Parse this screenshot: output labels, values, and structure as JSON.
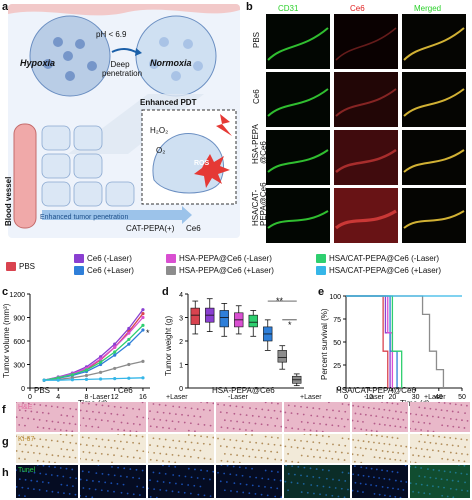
{
  "panels": {
    "a": "a",
    "b": "b",
    "c": "c",
    "d": "d",
    "e": "e",
    "f": "f",
    "g": "g",
    "h": "h"
  },
  "schematic": {
    "hypoxia": "Hypoxia",
    "normoxia": "Normoxia",
    "ph": "pH < 6.9",
    "deep_penetration": "Deep penetration",
    "enhanced_pdt": "Enhanced PDT",
    "blood_vessel": "Blood vessel",
    "enhanced_tumor_penetration": "Enhanced tumor penetration",
    "h2o2": "H₂O₂",
    "o2": "O₂",
    "ros": "ROS",
    "legend_cat": "CAT-PEPA(+)",
    "legend_ce6": "Ce6"
  },
  "panel_b": {
    "columns": [
      "CD31",
      "Ce6",
      "Merged"
    ],
    "column_colors": [
      "#2bd12b",
      "#e02020",
      "#2bd12b"
    ],
    "rows": [
      "PBS",
      "Ce6",
      "HSA-PEPA\n@Ce6",
      "HSA/CAT-\nPEPA@Ce6"
    ]
  },
  "legend": {
    "items": [
      {
        "label": "PBS",
        "color": "#d9434f"
      },
      {
        "label": "Ce6 (-Laser)",
        "color": "#8a3fd1"
      },
      {
        "label": "Ce6 (+Laser)",
        "color": "#2f7fd9"
      },
      {
        "label": "HSA-PEPA@Ce6 (-Laser)",
        "color": "#d94fd1"
      },
      {
        "label": "HSA-PEPA@Ce6 (+Laser)",
        "color": "#8c8c8c"
      },
      {
        "label": "HSA/CAT-PEPA@Ce6 (-Laser)",
        "color": "#2ecf6f"
      },
      {
        "label": "HSA/CAT-PEPA@Ce6 (+Laser)",
        "color": "#35b6e8"
      }
    ]
  },
  "chart_data": [
    {
      "type": "line",
      "panel": "c",
      "xlabel": "Time (d)",
      "ylabel": "Tumor volume (mm³)",
      "xlim": [
        0,
        17
      ],
      "ylim": [
        0,
        1200
      ],
      "xticks": [
        0,
        4,
        8,
        12,
        16
      ],
      "yticks": [
        0,
        300,
        600,
        900,
        1200
      ],
      "x": [
        2,
        4,
        6,
        8,
        10,
        12,
        14,
        16
      ],
      "annotation": "*",
      "series": [
        {
          "name": "PBS",
          "color": "#d9434f",
          "values": [
            100,
            130,
            170,
            240,
            360,
            520,
            720,
            950
          ]
        },
        {
          "name": "Ce6 (-Laser)",
          "color": "#8a3fd1",
          "values": [
            100,
            140,
            190,
            270,
            400,
            560,
            760,
            1000
          ]
        },
        {
          "name": "Ce6 (+Laser)",
          "color": "#2f7fd9",
          "values": [
            100,
            125,
            160,
            210,
            300,
            420,
            560,
            740
          ]
        },
        {
          "name": "HSA-PEPA@Ce6 (-Laser)",
          "color": "#d94fd1",
          "values": [
            100,
            135,
            180,
            250,
            370,
            520,
            700,
            900
          ]
        },
        {
          "name": "HSA-PEPA@Ce6 (+Laser)",
          "color": "#8c8c8c",
          "values": [
            100,
            110,
            130,
            160,
            200,
            250,
            300,
            340
          ]
        },
        {
          "name": "HSA/CAT-PEPA@Ce6 (-Laser)",
          "color": "#2ecf6f",
          "values": [
            100,
            130,
            170,
            230,
            330,
            460,
            620,
            800
          ]
        },
        {
          "name": "HSA/CAT-PEPA@Ce6 (+Laser)",
          "color": "#35b6e8",
          "values": [
            100,
            100,
            105,
            110,
            115,
            120,
            125,
            130
          ]
        }
      ]
    },
    {
      "type": "box",
      "panel": "d",
      "ylabel": "Tumor weight (g)",
      "ylim": [
        0,
        4
      ],
      "yticks": [
        0,
        1,
        2,
        3,
        4
      ],
      "annotations": [
        "**",
        "*"
      ],
      "boxes": [
        {
          "color": "#d9434f",
          "min": 2.3,
          "q1": 2.7,
          "median": 3.1,
          "q3": 3.4,
          "max": 3.7
        },
        {
          "color": "#8a3fd1",
          "min": 2.4,
          "q1": 2.8,
          "median": 3.1,
          "q3": 3.4,
          "max": 3.8
        },
        {
          "color": "#2f7fd9",
          "min": 2.2,
          "q1": 2.6,
          "median": 3.0,
          "q3": 3.3,
          "max": 3.6
        },
        {
          "color": "#d94fd1",
          "min": 2.3,
          "q1": 2.6,
          "median": 2.9,
          "q3": 3.2,
          "max": 3.5
        },
        {
          "color": "#2ecf6f",
          "min": 2.2,
          "q1": 2.6,
          "median": 2.8,
          "q3": 3.1,
          "max": 3.3
        },
        {
          "color": "#2f7fd9",
          "min": 1.6,
          "q1": 2.0,
          "median": 2.3,
          "q3": 2.6,
          "max": 2.9
        },
        {
          "color": "#8c8c8c",
          "min": 0.8,
          "q1": 1.1,
          "median": 1.3,
          "q3": 1.6,
          "max": 1.8
        },
        {
          "color": "#8c8c8c",
          "min": 0.1,
          "q1": 0.2,
          "median": 0.35,
          "q3": 0.5,
          "max": 0.6
        }
      ]
    },
    {
      "type": "line",
      "panel": "e",
      "xlabel": "Time (d)",
      "ylabel": "Percent survival (%)",
      "xlim": [
        0,
        50
      ],
      "ylim": [
        0,
        100
      ],
      "xticks": [
        0,
        10,
        20,
        30,
        40,
        50
      ],
      "yticks": [
        0,
        25,
        50,
        75,
        100
      ],
      "series": [
        {
          "name": "PBS",
          "color": "#d9434f",
          "steps": [
            [
              0,
              100
            ],
            [
              16,
              100
            ],
            [
              16,
              40
            ],
            [
              18,
              40
            ],
            [
              18,
              0
            ]
          ]
        },
        {
          "name": "Ce6 (-Laser)",
          "color": "#8a3fd1",
          "steps": [
            [
              0,
              100
            ],
            [
              17,
              100
            ],
            [
              17,
              60
            ],
            [
              19,
              60
            ],
            [
              19,
              0
            ]
          ]
        },
        {
          "name": "Ce6 (+Laser)",
          "color": "#2f7fd9",
          "steps": [
            [
              0,
              100
            ],
            [
              19,
              100
            ],
            [
              19,
              40
            ],
            [
              22,
              40
            ],
            [
              22,
              0
            ]
          ]
        },
        {
          "name": "HSA-PEPA@Ce6 (-Laser)",
          "color": "#d94fd1",
          "steps": [
            [
              0,
              100
            ],
            [
              18,
              100
            ],
            [
              18,
              60
            ],
            [
              20,
              60
            ],
            [
              20,
              0
            ]
          ]
        },
        {
          "name": "HSA-PEPA@Ce6 (+Laser)",
          "color": "#8c8c8c",
          "steps": [
            [
              0,
              100
            ],
            [
              33,
              100
            ],
            [
              33,
              80
            ],
            [
              36,
              80
            ],
            [
              36,
              40
            ],
            [
              39,
              40
            ],
            [
              39,
              20
            ],
            [
              42,
              20
            ],
            [
              42,
              0
            ]
          ]
        },
        {
          "name": "HSA/CAT-PEPA@Ce6 (-Laser)",
          "color": "#2ecf6f",
          "steps": [
            [
              0,
              100
            ],
            [
              20,
              100
            ],
            [
              20,
              40
            ],
            [
              24,
              40
            ],
            [
              24,
              0
            ]
          ]
        },
        {
          "name": "HSA/CAT-PEPA@Ce6 (+Laser)",
          "color": "#35b6e8",
          "steps": [
            [
              0,
              100
            ],
            [
              50,
              100
            ]
          ]
        }
      ]
    }
  ],
  "panel_fgh": {
    "groups": [
      "PBS",
      "Ce6",
      "HSA-PEPA@Ce6",
      "HSA/CAT-PEPA@Ce6"
    ],
    "sublabels": [
      "-Laser",
      "+Laser",
      "-Laser",
      "+Laser",
      "-Laser",
      "+Laser"
    ],
    "rows": [
      "H&E",
      "Ki-67",
      "Tunel"
    ],
    "row_colors": [
      "#e06ca0",
      "#b8892c",
      "#29c94a"
    ]
  }
}
